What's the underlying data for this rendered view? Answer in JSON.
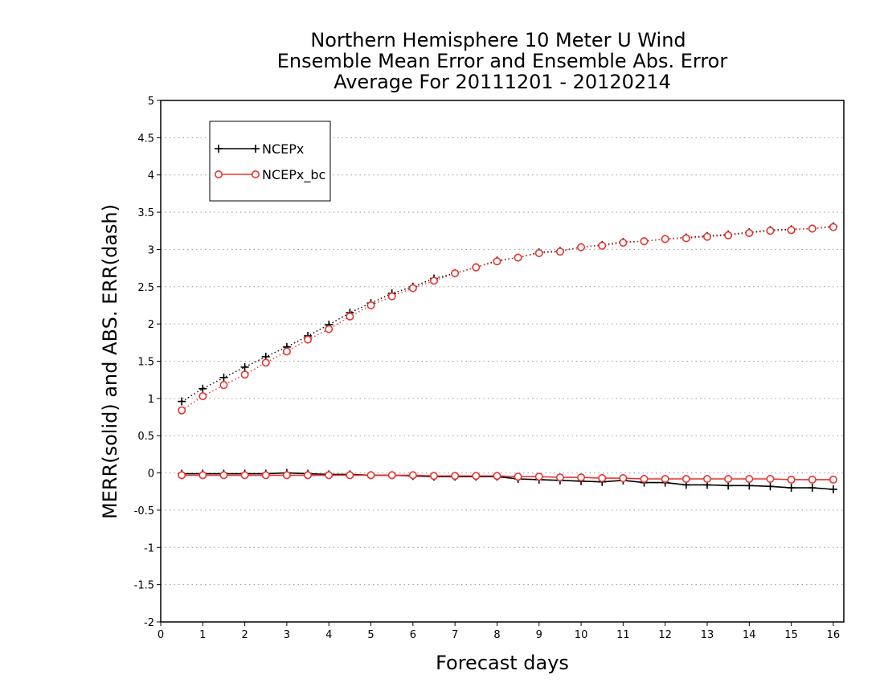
{
  "chart_data": {
    "type": "line",
    "title_lines": [
      "Northern Hemisphere 10 Meter U Wind",
      "Ensemble Mean Error and Ensemble Abs. Error",
      "Average For 20111201 - 20120214"
    ],
    "xlabel": "Forecast days",
    "ylabel": "MERR(solid) and ABS. ERR(dash)",
    "xlim": [
      0,
      16.25
    ],
    "ylim": [
      -2,
      5
    ],
    "x_ticks": [
      0,
      1,
      2,
      3,
      4,
      5,
      6,
      7,
      8,
      9,
      10,
      11,
      12,
      13,
      14,
      15,
      16
    ],
    "x_tick_labels": [
      "0",
      "1",
      "2",
      "3",
      "4",
      "5",
      "6",
      "7",
      "8",
      "9",
      "10",
      "11",
      "12",
      "13",
      "14",
      "15",
      "16"
    ],
    "y_ticks": [
      -2,
      -1.5,
      -1,
      -0.5,
      0,
      0.5,
      1,
      1.5,
      2,
      2.5,
      3,
      3.5,
      4,
      4.5,
      5
    ],
    "y_tick_labels": [
      "-2",
      "-1.5",
      "-1",
      "-0.5",
      "0",
      "0.5",
      "1",
      "1.5",
      "2",
      "2.5",
      "3",
      "3.5",
      "4",
      "4.5",
      "5"
    ],
    "grid": "horizontal dotted",
    "legend_position": "top-left",
    "x": [
      0.5,
      1,
      1.5,
      2,
      2.5,
      3,
      3.5,
      4,
      4.5,
      5,
      5.5,
      6,
      6.5,
      7,
      7.5,
      8,
      8.5,
      9,
      9.5,
      10,
      10.5,
      11,
      11.5,
      12,
      12.5,
      13,
      13.5,
      14,
      14.5,
      15,
      15.5,
      16
    ],
    "series": [
      {
        "name": "NCEPx",
        "color": "#000000",
        "marker": "plus",
        "merr": [
          -0.01,
          -0.01,
          -0.01,
          -0.01,
          -0.01,
          0.0,
          -0.01,
          -0.02,
          -0.02,
          -0.03,
          -0.03,
          -0.04,
          -0.05,
          -0.05,
          -0.05,
          -0.05,
          -0.08,
          -0.09,
          -0.1,
          -0.11,
          -0.12,
          -0.1,
          -0.13,
          -0.13,
          -0.16,
          -0.16,
          -0.17,
          -0.17,
          -0.18,
          -0.2,
          -0.2,
          -0.22
        ],
        "abs_err": [
          0.96,
          1.13,
          1.28,
          1.42,
          1.56,
          1.69,
          1.84,
          1.99,
          2.15,
          2.28,
          2.41,
          2.5,
          2.61,
          2.68,
          2.76,
          2.85,
          2.89,
          2.96,
          2.98,
          3.03,
          3.06,
          3.1,
          3.11,
          3.14,
          3.16,
          3.18,
          3.2,
          3.23,
          3.26,
          3.27,
          3.28,
          3.31
        ]
      },
      {
        "name": "NCEPx_bc",
        "color": "#e8342f",
        "marker": "circle",
        "merr": [
          -0.03,
          -0.03,
          -0.03,
          -0.03,
          -0.03,
          -0.03,
          -0.03,
          -0.03,
          -0.03,
          -0.03,
          -0.03,
          -0.03,
          -0.04,
          -0.04,
          -0.04,
          -0.04,
          -0.05,
          -0.05,
          -0.06,
          -0.06,
          -0.07,
          -0.07,
          -0.08,
          -0.08,
          -0.08,
          -0.08,
          -0.08,
          -0.08,
          -0.08,
          -0.09,
          -0.09,
          -0.09
        ],
        "abs_err": [
          0.84,
          1.03,
          1.18,
          1.32,
          1.48,
          1.63,
          1.79,
          1.93,
          2.1,
          2.25,
          2.37,
          2.48,
          2.58,
          2.68,
          2.76,
          2.84,
          2.89,
          2.95,
          2.97,
          3.03,
          3.05,
          3.09,
          3.11,
          3.14,
          3.15,
          3.17,
          3.19,
          3.22,
          3.25,
          3.26,
          3.28,
          3.3
        ]
      }
    ]
  }
}
